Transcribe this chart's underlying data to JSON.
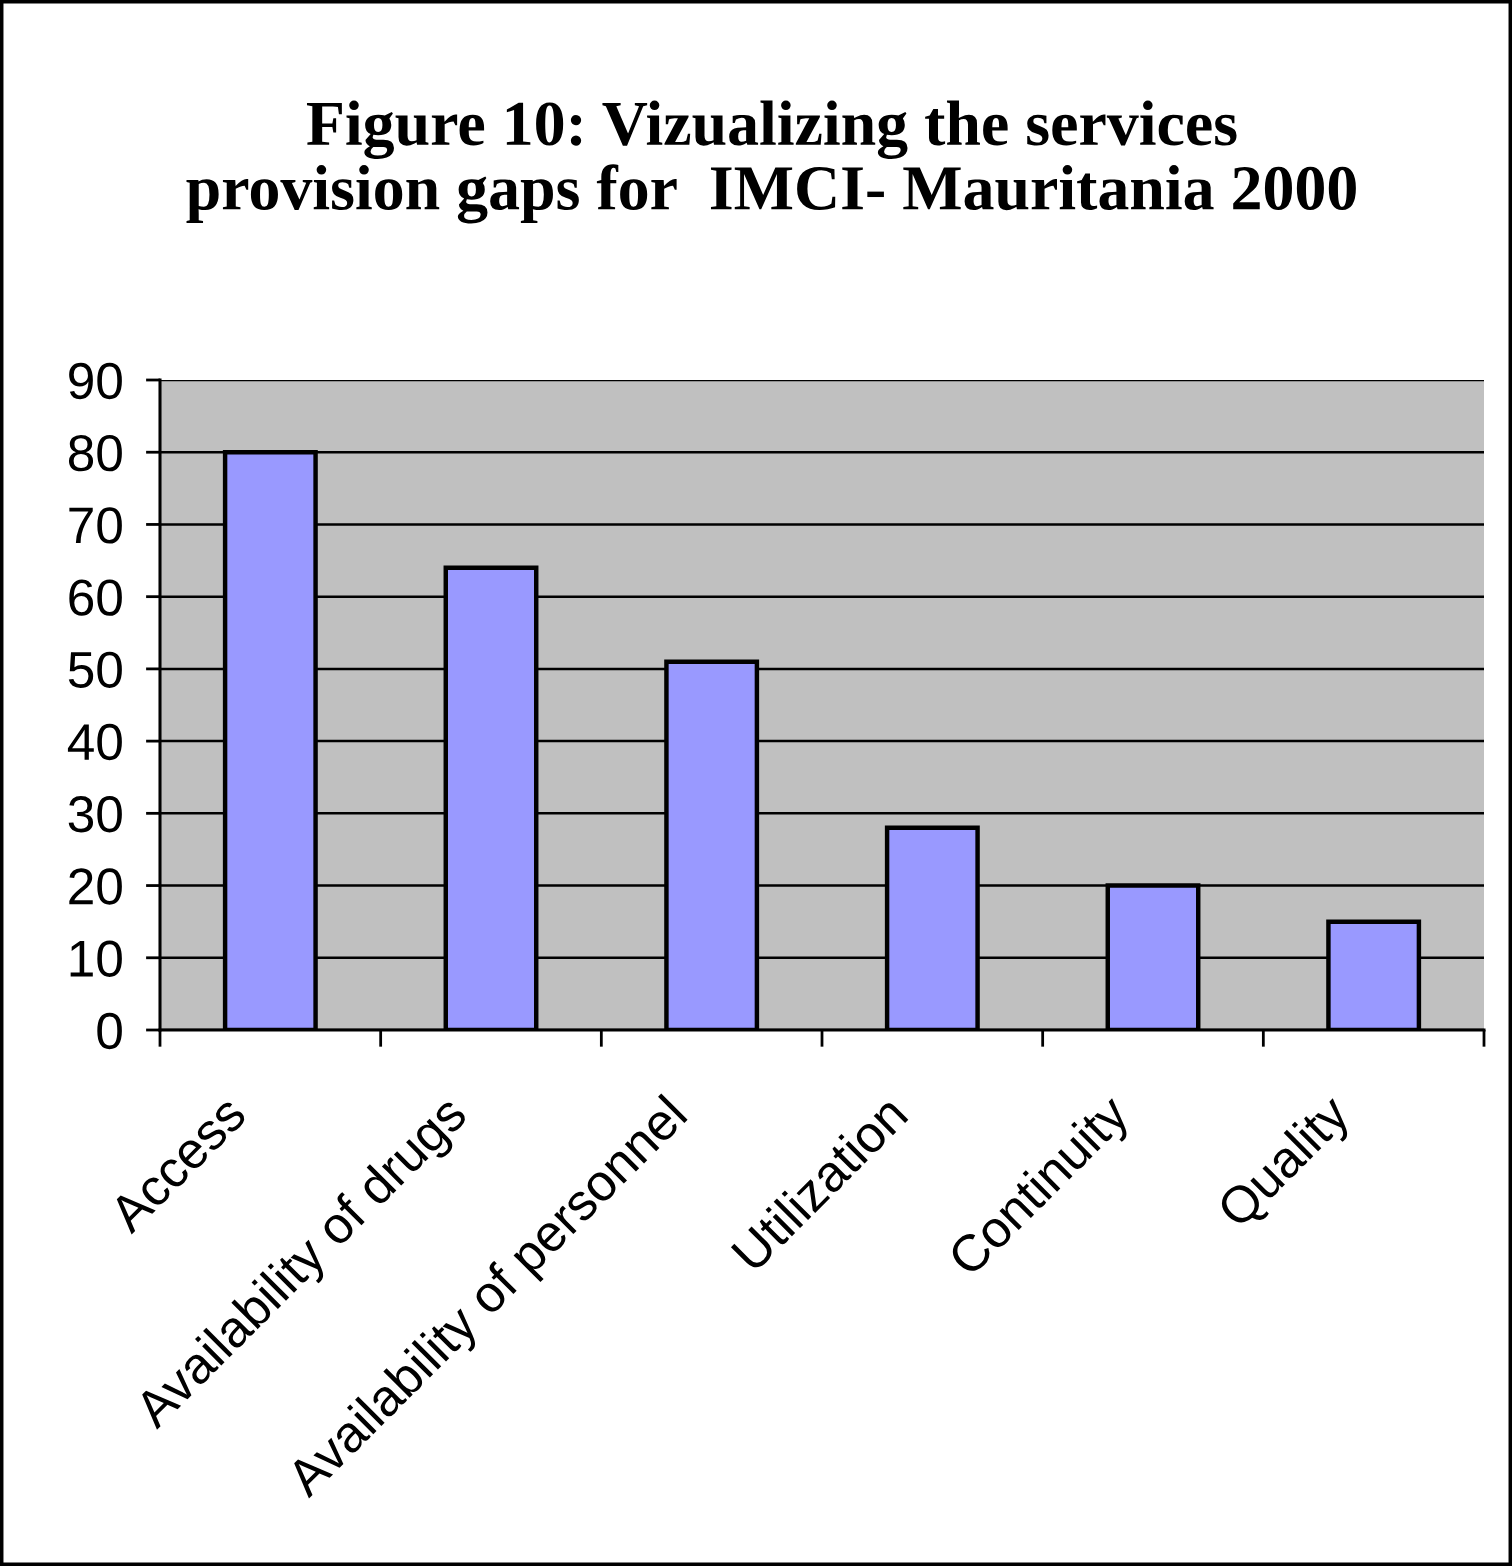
{
  "chart_data": {
    "type": "bar",
    "title": "Figure 10: Vizualizing the services\nprovision gaps for  IMCI- Mauritania 2000",
    "categories": [
      "Access",
      "Availability of drugs",
      "Availability of personnel",
      "Utilization",
      "Continuity",
      "Quality"
    ],
    "values": [
      80,
      64,
      51,
      28,
      20,
      15
    ],
    "color": "#9999ff",
    "ylim": [
      0,
      90
    ],
    "yticks": [
      0,
      10,
      20,
      30,
      40,
      50,
      60,
      70,
      80,
      90
    ],
    "grid": "y"
  }
}
